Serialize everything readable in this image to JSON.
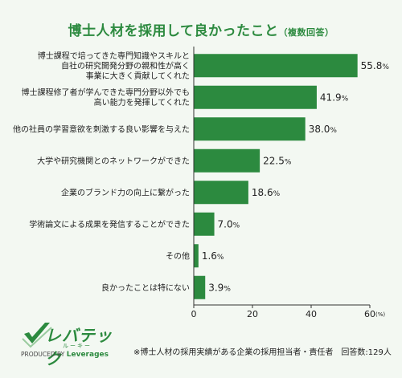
{
  "title": "博士人材を採用して良かったこと",
  "subtitle": "（複数回答）",
  "colors": {
    "bar": "#2c8a3f",
    "title": "#2c8a3f",
    "background": "#f3f8f2"
  },
  "logo": {
    "name": "レバテック",
    "sub": "ルーキー",
    "by_prefix": "PRODUCED BY",
    "by_brand": "Leverages"
  },
  "footnote": "※博士人材の採用実績がある企業の採用担当者・責任者　回答数:129人",
  "chart_data": {
    "type": "bar",
    "orientation": "horizontal",
    "categories": [
      [
        "博士課程で培ってきた専門知識やスキルと",
        "自社の研究開発分野の親和性が高く",
        "事業に大きく貢献してくれた"
      ],
      [
        "博士課程修了者が学んできた専門分野以外でも",
        "高い能力を発揮してくれた"
      ],
      [
        "他の社員の学習意欲を刺激する良い影響を与えた"
      ],
      [
        "大学や研究機関とのネットワークができた"
      ],
      [
        "企業のブランド力の向上に繋がった"
      ],
      [
        "学術論文による成果を発信することができた"
      ],
      [
        "その他"
      ],
      [
        "良かったことは特にない"
      ]
    ],
    "values": [
      55.8,
      41.9,
      38.0,
      22.5,
      18.6,
      7.0,
      1.6,
      3.9
    ],
    "value_labels": [
      "55.8",
      "41.9",
      "38.0",
      "22.5",
      "18.6",
      "7.0",
      "1.6",
      "3.9"
    ],
    "value_unit": "%",
    "xlim": [
      0,
      60
    ],
    "xticks": [
      0,
      20,
      40,
      60
    ],
    "xtick_labels": [
      "0",
      "20",
      "40",
      "60"
    ],
    "x_unit_label": "(%)",
    "grid": false
  }
}
